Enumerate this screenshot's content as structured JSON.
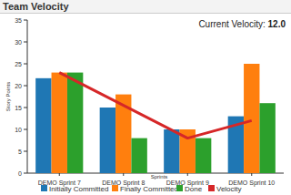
{
  "chart_data": {
    "type": "bar",
    "title": "Team Velocity",
    "annotation": {
      "text": "Current Velocity:",
      "value": 12,
      "label": "12.0"
    },
    "x_label": "Sprints",
    "y_label": "Story Points",
    "categories": [
      "DEMO Sprint 7",
      "DEMO Sprint 8",
      "DEMO Sprint 9",
      "DEMO Sprint 10"
    ],
    "series": [
      {
        "name": "Initially Committed",
        "color": "#1f77b4",
        "type": "bar",
        "values": [
          21.7,
          15,
          10,
          13
        ]
      },
      {
        "name": "Finally Committed",
        "color": "#ff7f0e",
        "type": "bar",
        "values": [
          23,
          18,
          10,
          25
        ]
      },
      {
        "name": "Done",
        "color": "#2ca02c",
        "type": "bar",
        "values": [
          23,
          8,
          8,
          16
        ]
      },
      {
        "name": "Velocity",
        "color": "#d62728",
        "type": "line",
        "values": [
          23,
          15.5,
          8,
          12
        ]
      }
    ],
    "ylim": [
      0,
      35
    ],
    "yticks": [
      0,
      5,
      10,
      15,
      20,
      25,
      30,
      35
    ],
    "grid": false,
    "legend": "bottom"
  }
}
